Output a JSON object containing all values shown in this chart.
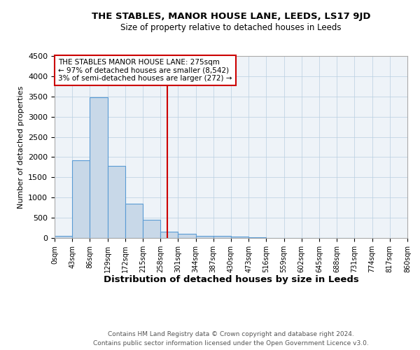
{
  "title1": "THE STABLES, MANOR HOUSE LANE, LEEDS, LS17 9JD",
  "title2": "Size of property relative to detached houses in Leeds",
  "xlabel": "Distribution of detached houses by size in Leeds",
  "ylabel": "Number of detached properties",
  "footer1": "Contains HM Land Registry data © Crown copyright and database right 2024.",
  "footer2": "Contains public sector information licensed under the Open Government Licence v3.0.",
  "annotation_line1": "THE STABLES MANOR HOUSE LANE: 275sqm",
  "annotation_line2": "← 97% of detached houses are smaller (8,542)",
  "annotation_line3": "3% of semi-detached houses are larger (272) →",
  "bar_left_edges": [
    0,
    43,
    86,
    129,
    172,
    215,
    258,
    301,
    344,
    387,
    430,
    473,
    516,
    559,
    602,
    645,
    688,
    731,
    774,
    817
  ],
  "bar_heights": [
    50,
    1920,
    3480,
    1780,
    850,
    450,
    160,
    100,
    55,
    45,
    30,
    25,
    5,
    3,
    2,
    1,
    1,
    0,
    0,
    0
  ],
  "bin_width": 43,
  "bar_color": "#c8d8e8",
  "bar_edge_color": "#5a9bd4",
  "red_line_x": 275,
  "red_line_color": "#cc0000",
  "ylim": [
    0,
    4500
  ],
  "xlim": [
    0,
    860
  ],
  "tick_labels": [
    "0sqm",
    "43sqm",
    "86sqm",
    "129sqm",
    "172sqm",
    "215sqm",
    "258sqm",
    "301sqm",
    "344sqm",
    "387sqm",
    "430sqm",
    "473sqm",
    "516sqm",
    "559sqm",
    "602sqm",
    "645sqm",
    "688sqm",
    "731sqm",
    "774sqm",
    "817sqm",
    "860sqm"
  ],
  "tick_positions": [
    0,
    43,
    86,
    129,
    172,
    215,
    258,
    301,
    344,
    387,
    430,
    473,
    516,
    559,
    602,
    645,
    688,
    731,
    774,
    817,
    860
  ],
  "yticks": [
    0,
    500,
    1000,
    1500,
    2000,
    2500,
    3000,
    3500,
    4000,
    4500
  ],
  "plot_bg_color": "#eef3f8",
  "grid_color": "#b8cfe0",
  "annotation_box_edge": "#cc0000",
  "annotation_box_bg": "#ffffff"
}
